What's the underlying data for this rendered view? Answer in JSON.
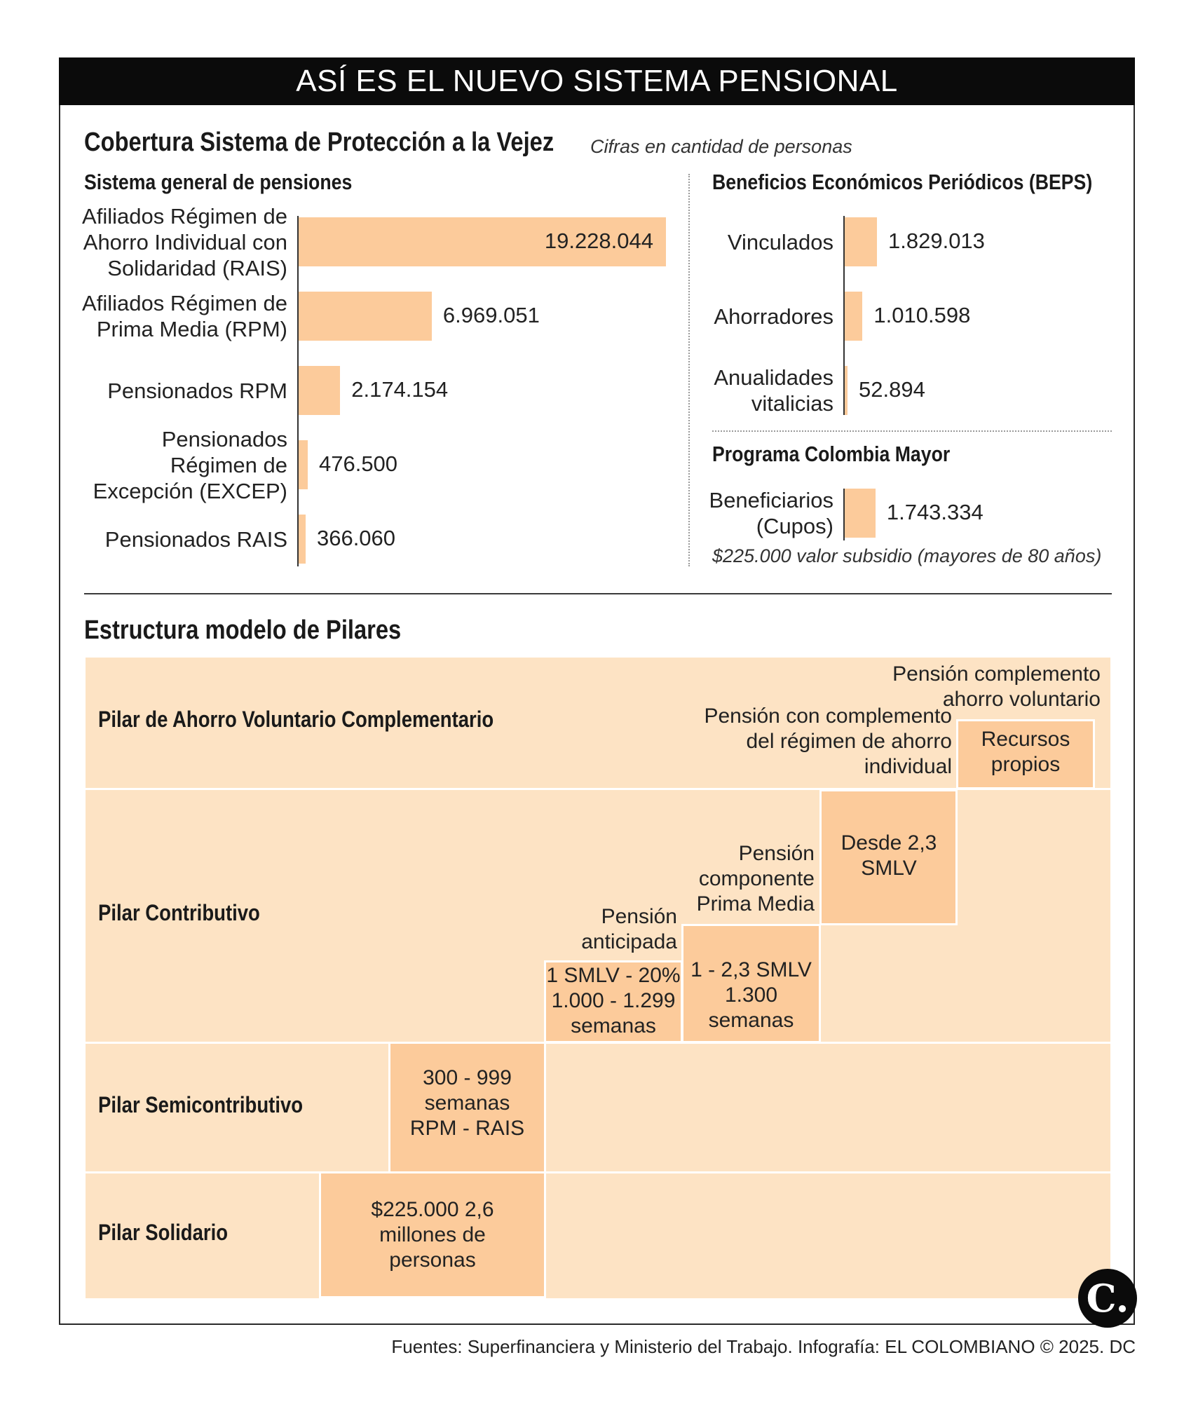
{
  "header": {
    "title": "ASÍ ES EL NUEVO SISTEMA PENSIONAL"
  },
  "coverage": {
    "title": "Cobertura Sistema de Protección a la Vejez",
    "note": "Cifras en cantidad de personas"
  },
  "chart_data": [
    {
      "type": "bar",
      "orientation": "horizontal",
      "title": "Sistema general de pensiones",
      "categories": [
        "Afiliados Régimen de Ahorro Individual con Solidaridad (RAIS)",
        "Afiliados Régimen de Prima Media (RPM)",
        "Pensionados RPM",
        "Pensionados Régimen de Excepción (EXCEP)",
        "Pensionados RAIS"
      ],
      "values": [
        19228044,
        6969051,
        2174154,
        476500,
        366060
      ],
      "value_labels": [
        "19.228.044",
        "6.969.051",
        "2.174.154",
        "476.500",
        "366.060"
      ],
      "color": "#fccb9b"
    },
    {
      "type": "bar",
      "orientation": "horizontal",
      "title": "Beneficios Económicos Periódicos (BEPS)",
      "categories": [
        "Vinculados",
        "Ahorradores",
        "Anualidades vitalicias"
      ],
      "values": [
        1829013,
        1010598,
        52894
      ],
      "value_labels": [
        "1.829.013",
        "1.010.598",
        "52.894"
      ],
      "color": "#fccb9b"
    },
    {
      "type": "bar",
      "orientation": "horizontal",
      "title": "Programa Colombia Mayor",
      "categories": [
        "Beneficiarios (Cupos)"
      ],
      "values": [
        1743334
      ],
      "value_labels": [
        "1.743.334"
      ],
      "note": "$225.000 valor subsidio (mayores de 80 años)",
      "color": "#fccb9b"
    }
  ],
  "pillars": {
    "title": "Estructura modelo de Pilares",
    "voluntario": {
      "label": "Pilar de Ahorro Voluntario Complementario",
      "note_complemento": "Pensión complemento ahorro voluntario",
      "note_rais": "Pensión con complemento del régimen de ahorro individual",
      "cell": "Recursos propios"
    },
    "contributivo": {
      "label": "Pilar Contributivo",
      "note_prima": "Pensión componente Prima Media",
      "note_anticipada": "Pensión anticipada",
      "cell_desde": "Desde 2,3 SMLV",
      "cell_prima": "1 - 2,3 SMLV 1.300 semanas",
      "cell_anticipada": "1 SMLV - 20% 1.000 - 1.299 semanas"
    },
    "semicontributivo": {
      "label": "Pilar Semicontributivo",
      "cell": "300 - 999 semanas RPM - RAIS"
    },
    "solidario": {
      "label": "Pilar Solidario",
      "cell": "$225.000 2,6 millones de personas"
    }
  },
  "footer": {
    "sources": "Fuentes: Superfinanciera y Ministerio del Trabajo. Infografía: EL COLOMBIANO © 2025. DC",
    "logo": "C."
  }
}
